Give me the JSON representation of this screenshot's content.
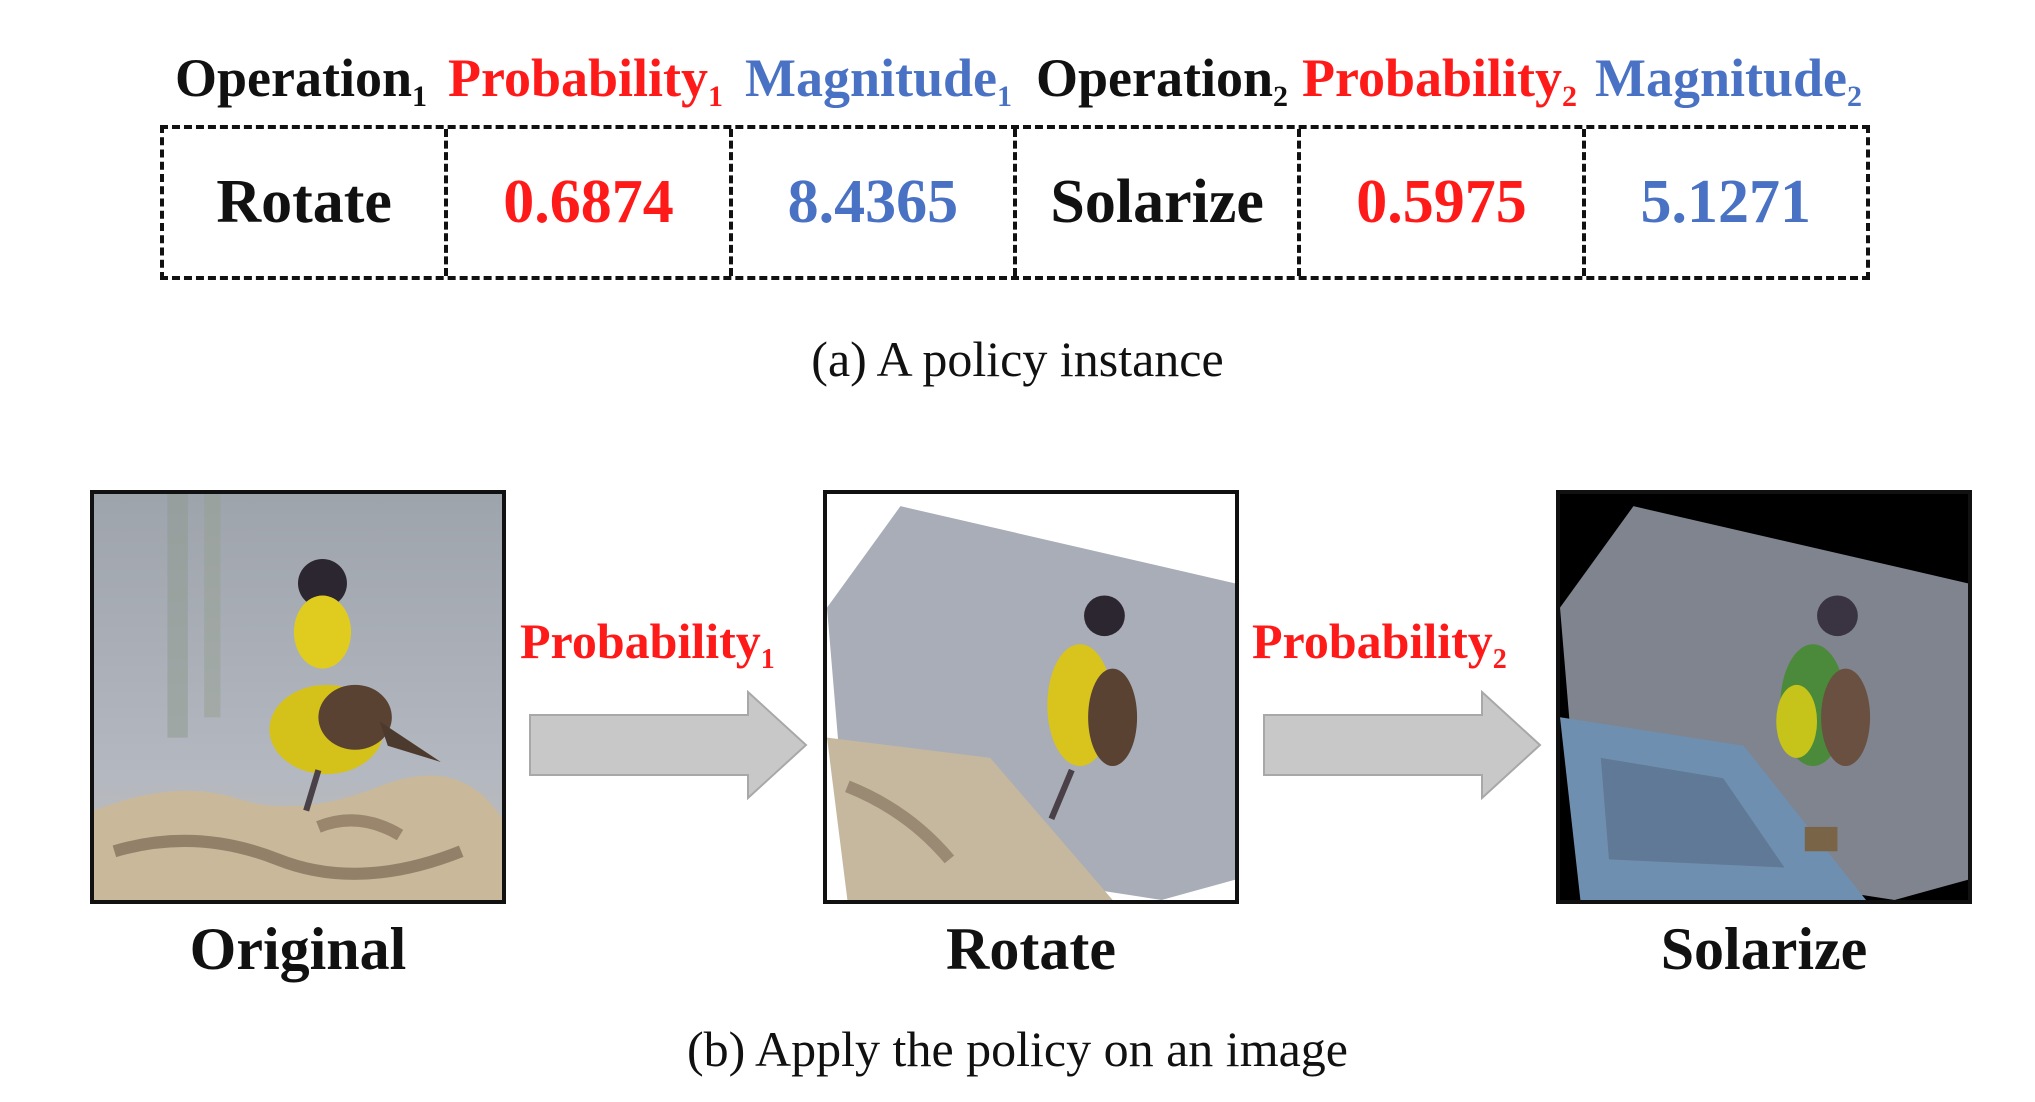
{
  "policy": {
    "headers": [
      {
        "name": "Operation",
        "sub": "1",
        "color": "black"
      },
      {
        "name": "Probability",
        "sub": "1",
        "color": "red"
      },
      {
        "name": "Magnitude",
        "sub": "1",
        "color": "blue"
      },
      {
        "name": "Operation",
        "sub": "2",
        "color": "black"
      },
      {
        "name": "Probability",
        "sub": "2",
        "color": "red"
      },
      {
        "name": "Magnitude",
        "sub": "2",
        "color": "blue"
      }
    ],
    "values": [
      "Rotate",
      "0.6874",
      "8.4365",
      "Solarize",
      "0.5975",
      "5.1271"
    ],
    "caption": "(a) A policy instance"
  },
  "apply": {
    "images": [
      "Original",
      "Rotate",
      "Solarize"
    ],
    "arrows": [
      {
        "name": "Probability",
        "sub": "1"
      },
      {
        "name": "Probability",
        "sub": "2"
      }
    ],
    "caption": "(b) Apply the policy on an image"
  },
  "colors": {
    "text": "#111111",
    "probability": "#ff1a1a",
    "magnitude": "#4a72c4",
    "arrow": "#c8c8c8",
    "arrow_edge": "#a8a8a8"
  }
}
